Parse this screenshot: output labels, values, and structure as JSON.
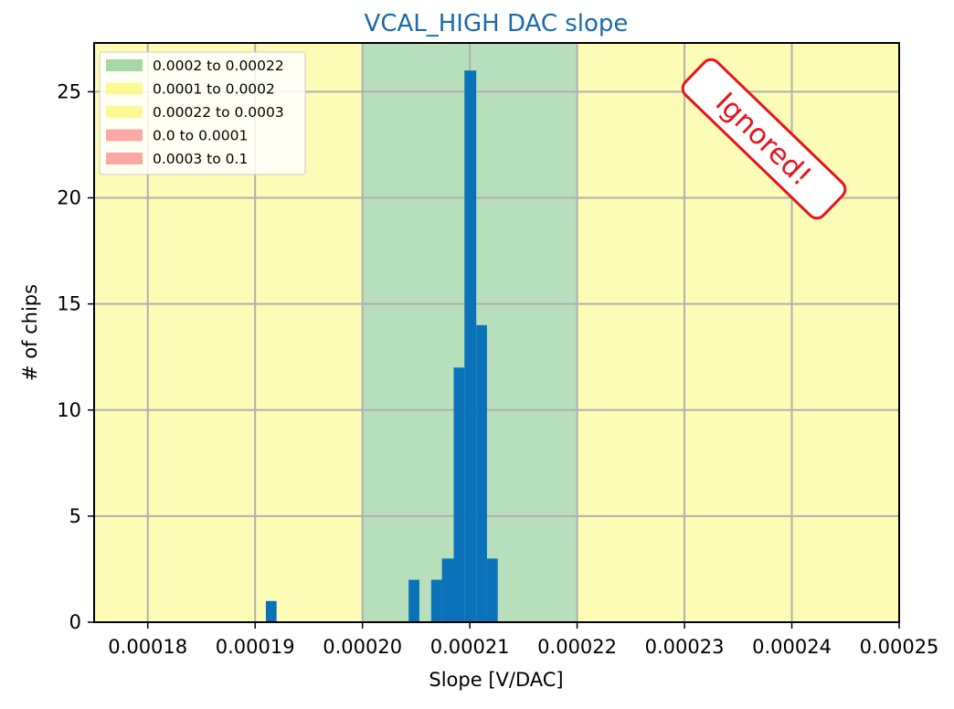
{
  "chart_data": {
    "type": "bar",
    "title": "VCAL_HIGH DAC slope",
    "xlabel": "Slope [V/DAC]",
    "ylabel": "# of chips",
    "xlim": [
      0.000175,
      0.00025
    ],
    "ylim": [
      0,
      27.3
    ],
    "grid": true,
    "legend_position": "top-left",
    "xticks": [
      0.00018,
      0.00019,
      0.0002,
      0.00021,
      0.00022,
      0.00023,
      0.00024,
      0.00025
    ],
    "xtick_labels": [
      "0.00018",
      "0.00019",
      "0.00020",
      "0.00021",
      "0.00022",
      "0.00023",
      "0.00024",
      "0.00025"
    ],
    "yticks": [
      0,
      5,
      10,
      15,
      20,
      25
    ],
    "ytick_labels": [
      "0",
      "5",
      "10",
      "15",
      "20",
      "25"
    ],
    "bar_color": "#0a72b8",
    "bins": [
      {
        "x0": 0.000191,
        "x1": 0.000192,
        "count": 1
      },
      {
        "x0": 0.0002043,
        "x1": 0.0002053,
        "count": 2
      },
      {
        "x0": 0.0002064,
        "x1": 0.0002074,
        "count": 2
      },
      {
        "x0": 0.0002074,
        "x1": 0.0002085,
        "count": 3
      },
      {
        "x0": 0.0002085,
        "x1": 0.0002095,
        "count": 12
      },
      {
        "x0": 0.0002095,
        "x1": 0.0002106,
        "count": 26
      },
      {
        "x0": 0.0002106,
        "x1": 0.0002116,
        "count": 14
      },
      {
        "x0": 0.0002116,
        "x1": 0.0002126,
        "count": 3
      }
    ],
    "bands": [
      {
        "from": 0.000175,
        "to": 0.0002,
        "color": "#fdfcb6"
      },
      {
        "from": 0.0002,
        "to": 0.00022,
        "color": "#b8dfbc"
      },
      {
        "from": 0.00022,
        "to": 0.00025,
        "color": "#fdfcb6"
      }
    ],
    "legend": [
      {
        "label": "0.0002 to 0.00022",
        "color": "#a6d8a6"
      },
      {
        "label": "0.0001 to 0.0002",
        "color": "#fdfa96"
      },
      {
        "label": "0.00022 to 0.0003",
        "color": "#fdfa96"
      },
      {
        "label": "0.0 to 0.0001",
        "color": "#f9a8a4"
      },
      {
        "label": "0.0003 to 0.1",
        "color": "#f9a8a4"
      }
    ],
    "annotation": {
      "text": "Ignored!",
      "color": "#e8141c"
    }
  }
}
